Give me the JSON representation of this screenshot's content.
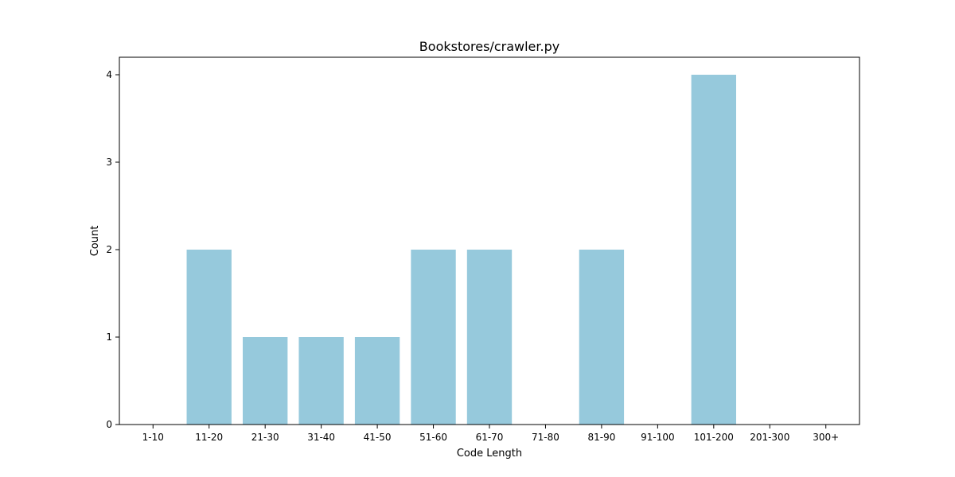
{
  "chart_data": {
    "type": "bar",
    "title": "Bookstores/crawler.py",
    "xlabel": "Code Length",
    "ylabel": "Count",
    "categories": [
      "1-10",
      "11-20",
      "21-30",
      "31-40",
      "41-50",
      "51-60",
      "61-70",
      "71-80",
      "81-90",
      "91-100",
      "101-200",
      "201-300",
      "300+"
    ],
    "values": [
      0,
      2,
      1,
      1,
      1,
      2,
      2,
      0,
      2,
      0,
      4,
      0,
      0
    ],
    "ylim": [
      0,
      4.2
    ],
    "yticks": [
      0,
      1,
      2,
      3,
      4
    ],
    "bar_color": "#96c9dc",
    "grid": false,
    "legend": "none"
  }
}
